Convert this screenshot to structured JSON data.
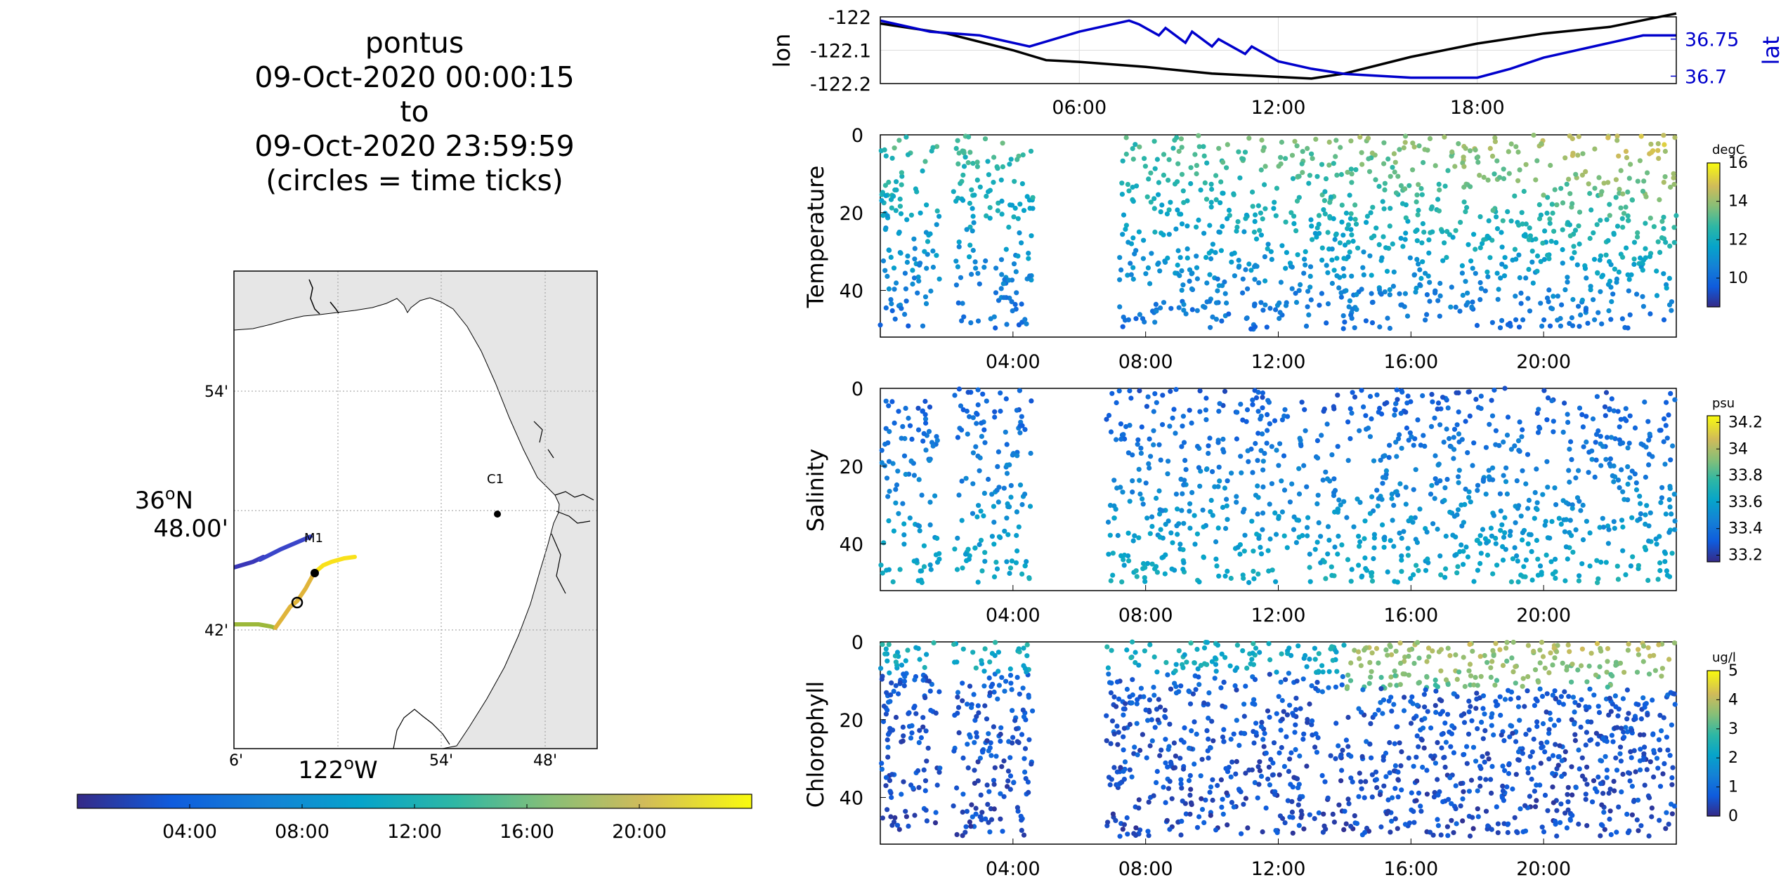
{
  "figure": {
    "title_lines": [
      "pontus",
      "09-Oct-2020 00:00:15",
      "to",
      "09-Oct-2020 23:59:59",
      "(circles = time ticks)"
    ]
  },
  "map": {
    "lat_ticks": [
      "54'",
      "42'"
    ],
    "lat_center": [
      "36",
      "o",
      "N",
      "48.00'"
    ],
    "lon_ticks": [
      "6'",
      "54'",
      "48'"
    ],
    "lon_center": [
      "122",
      "o",
      "W"
    ],
    "stations": [
      {
        "name": "C1"
      },
      {
        "name": "M1"
      }
    ],
    "time_colorbar_ticks": [
      "04:00",
      "08:00",
      "12:00",
      "16:00",
      "20:00"
    ],
    "colors": {
      "land": "#e6e6e6",
      "ocean": "#ffffff",
      "grid": "#9a9a9a"
    }
  },
  "chart_data": [
    {
      "type": "line",
      "ylabel": "lon",
      "y2label": "lat",
      "x_ticks": [
        "06:00",
        "12:00",
        "18:00"
      ],
      "x_range_hours": [
        0,
        24
      ],
      "ylim": [
        -122.2,
        -122
      ],
      "y_ticks": [
        "-122",
        "-122.1",
        "-122.2"
      ],
      "y2lim": [
        36.69,
        36.78
      ],
      "y2_ticks": [
        "36.75",
        "36.7"
      ],
      "series": [
        {
          "axis": "left",
          "color": "#000000",
          "points": [
            [
              0,
              -122.02
            ],
            [
              2,
              -122.05
            ],
            [
              4,
              -122.1
            ],
            [
              5,
              -122.13
            ],
            [
              6,
              -122.135
            ],
            [
              8,
              -122.15
            ],
            [
              10,
              -122.17
            ],
            [
              12,
              -122.18
            ],
            [
              13,
              -122.185
            ],
            [
              14,
              -122.17
            ],
            [
              16,
              -122.12
            ],
            [
              18,
              -122.08
            ],
            [
              20,
              -122.05
            ],
            [
              22,
              -122.03
            ],
            [
              24,
              -121.99
            ]
          ]
        },
        {
          "axis": "right",
          "color": "#0000cc",
          "points": [
            [
              0,
              36.775
            ],
            [
              1.5,
              36.76
            ],
            [
              3,
              36.755
            ],
            [
              4.5,
              36.74
            ],
            [
              6,
              36.76
            ],
            [
              7.5,
              36.775
            ],
            [
              7.8,
              36.77
            ],
            [
              8.4,
              36.755
            ],
            [
              8.6,
              36.765
            ],
            [
              9.2,
              36.745
            ],
            [
              9.4,
              36.76
            ],
            [
              10,
              36.74
            ],
            [
              10.2,
              36.75
            ],
            [
              11,
              36.73
            ],
            [
              11.2,
              36.74
            ],
            [
              12,
              36.72
            ],
            [
              13,
              36.71
            ],
            [
              14,
              36.703
            ],
            [
              16,
              36.698
            ],
            [
              18,
              36.698
            ],
            [
              19,
              36.71
            ],
            [
              20,
              36.725
            ],
            [
              22,
              36.745
            ],
            [
              23,
              36.755
            ],
            [
              24,
              36.755
            ]
          ]
        }
      ]
    },
    {
      "type": "scatter",
      "ylabel": "Temperature",
      "x_ticks": [
        "04:00",
        "08:00",
        "12:00",
        "16:00",
        "20:00"
      ],
      "x_range_hours": [
        0,
        24
      ],
      "ylim": [
        0,
        52
      ],
      "y_ticks": [
        "0",
        "20",
        "40"
      ],
      "colorbar": {
        "units": "degC",
        "ticks": [
          "16",
          "14",
          "12",
          "10"
        ],
        "clim": [
          8.5,
          16
        ]
      },
      "segments": [
        [
          0,
          1.8
        ],
        [
          2.2,
          4.6
        ],
        [
          7.2,
          24
        ]
      ],
      "points_per_hour": 60,
      "value_range": [
        8.5,
        16
      ],
      "note_values": "surface warm (~14-16), deep cool (~9-11)"
    },
    {
      "type": "scatter",
      "ylabel": "Salinity",
      "x_ticks": [
        "04:00",
        "08:00",
        "12:00",
        "16:00",
        "20:00"
      ],
      "x_range_hours": [
        0,
        24
      ],
      "ylim": [
        0,
        52
      ],
      "y_ticks": [
        "0",
        "20",
        "40"
      ],
      "colorbar": {
        "units": "psu",
        "ticks": [
          "34.2",
          "34",
          "33.8",
          "33.6",
          "33.4",
          "33.2"
        ],
        "clim": [
          33.15,
          34.25
        ]
      },
      "segments": [
        [
          0,
          1.8
        ],
        [
          2.2,
          4.6
        ],
        [
          6.8,
          24
        ]
      ],
      "points_per_hour": 55,
      "value_range": [
        33.2,
        33.75
      ]
    },
    {
      "type": "scatter",
      "ylabel": "Chlorophyll",
      "x_ticks": [
        "04:00",
        "08:00",
        "12:00",
        "16:00",
        "20:00"
      ],
      "x_range_hours": [
        0,
        24
      ],
      "ylim": [
        0,
        52
      ],
      "y_ticks": [
        "0",
        "20",
        "40"
      ],
      "colorbar": {
        "units": "ug/l",
        "ticks": [
          "5",
          "4",
          "3",
          "2",
          "1",
          "0"
        ],
        "clim": [
          0,
          5
        ]
      },
      "segments": [
        [
          0,
          1.8
        ],
        [
          2.2,
          4.6
        ],
        [
          6.8,
          24
        ]
      ],
      "points_per_hour": 75,
      "value_range": [
        0,
        5
      ]
    }
  ]
}
